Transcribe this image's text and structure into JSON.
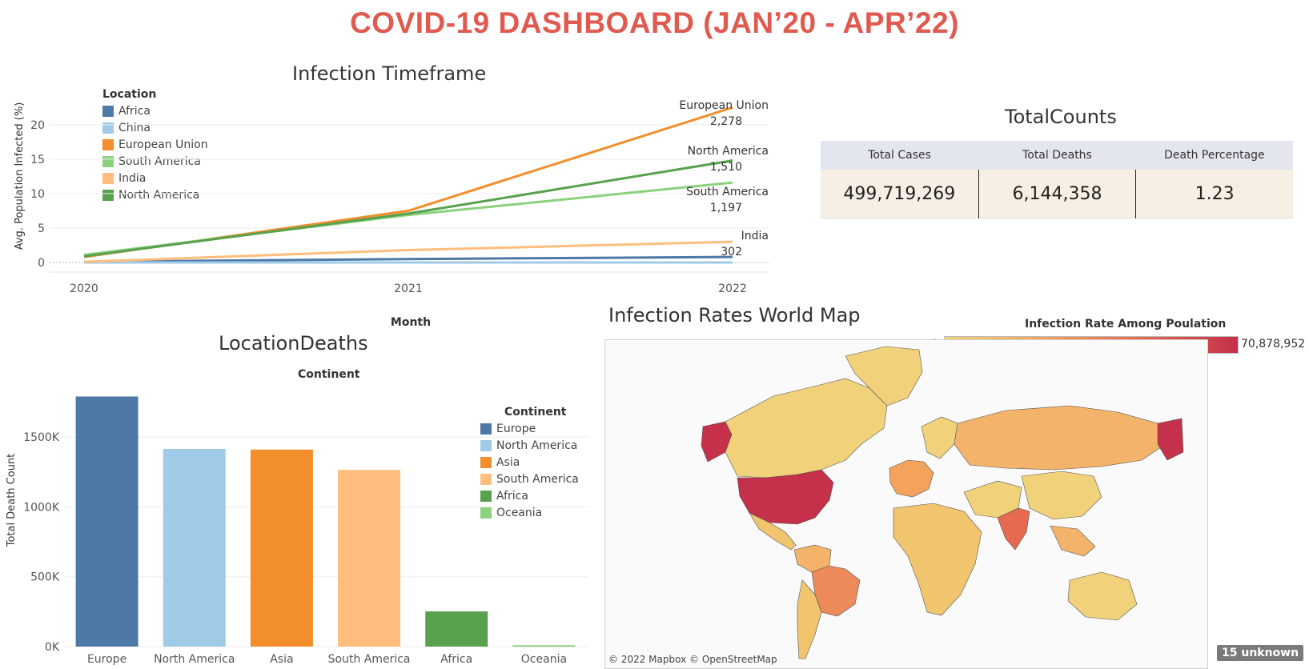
{
  "title": "COVID-19 DASHBOARD (JAN’20 - APR’22)",
  "infection_timeframe": {
    "title": "Infection Timeframe",
    "legend_title": "Location",
    "xlabel": "Month",
    "ylabel": "Avg. Population Infected (%)",
    "chart_data": {
      "type": "line",
      "x": [
        "2020",
        "2021",
        "2022"
      ],
      "ylim": [
        0,
        23
      ],
      "yticks": [
        0,
        5,
        10,
        15,
        20
      ],
      "series": [
        {
          "name": "Africa",
          "color": "#4e79a7",
          "values": [
            0.1,
            0.5,
            0.8
          ]
        },
        {
          "name": "China",
          "color": "#a0cbe8",
          "values": [
            0.0,
            0.0,
            0.0
          ]
        },
        {
          "name": "European Union",
          "color": "#f28e2b",
          "values": [
            0.8,
            7.5,
            22.5
          ],
          "end_label": "2,278"
        },
        {
          "name": "South America",
          "color": "#8cd17d",
          "values": [
            1.1,
            6.9,
            11.6
          ],
          "end_label": "1,197"
        },
        {
          "name": "India",
          "color": "#ffbe7d",
          "values": [
            0.1,
            1.8,
            3.0
          ],
          "end_label": "302"
        },
        {
          "name": "North America",
          "color": "#59a14f",
          "values": [
            0.9,
            7.1,
            14.8
          ],
          "end_label": "1,510"
        }
      ]
    }
  },
  "total_counts": {
    "title": "TotalCounts",
    "headers": [
      "Total Cases",
      "Total Deaths",
      "Death Percentage"
    ],
    "values": [
      "499,719,269",
      "6,144,358",
      "1.23"
    ]
  },
  "location_deaths": {
    "title": "LocationDeaths",
    "header": "Continent",
    "legend_title": "Continent",
    "ylabel": "Total Death Count",
    "chart_data": {
      "type": "bar",
      "categories": [
        "Europe",
        "North America",
        "Asia",
        "South America",
        "Africa",
        "Oceania"
      ],
      "values": [
        1790000,
        1415000,
        1410000,
        1265000,
        252000,
        10000
      ],
      "colors": [
        "#4e79a7",
        "#a0cbe8",
        "#f28e2b",
        "#ffbe7d",
        "#59a14f",
        "#8cd17d"
      ],
      "ylim": [
        0,
        1850000
      ],
      "yticks": [
        0,
        500000,
        1000000,
        1500000
      ],
      "ytick_labels": [
        "0K",
        "500K",
        "1000K",
        "1500K"
      ]
    }
  },
  "world_map": {
    "title": "Infection Rates World Map",
    "legend_title": "Infection Rate Among Poulation",
    "scale_min": "0",
    "scale_max": "70,878,952",
    "credit": "© 2022 Mapbox © OpenStreetMap",
    "unknown": "15 unknown"
  }
}
